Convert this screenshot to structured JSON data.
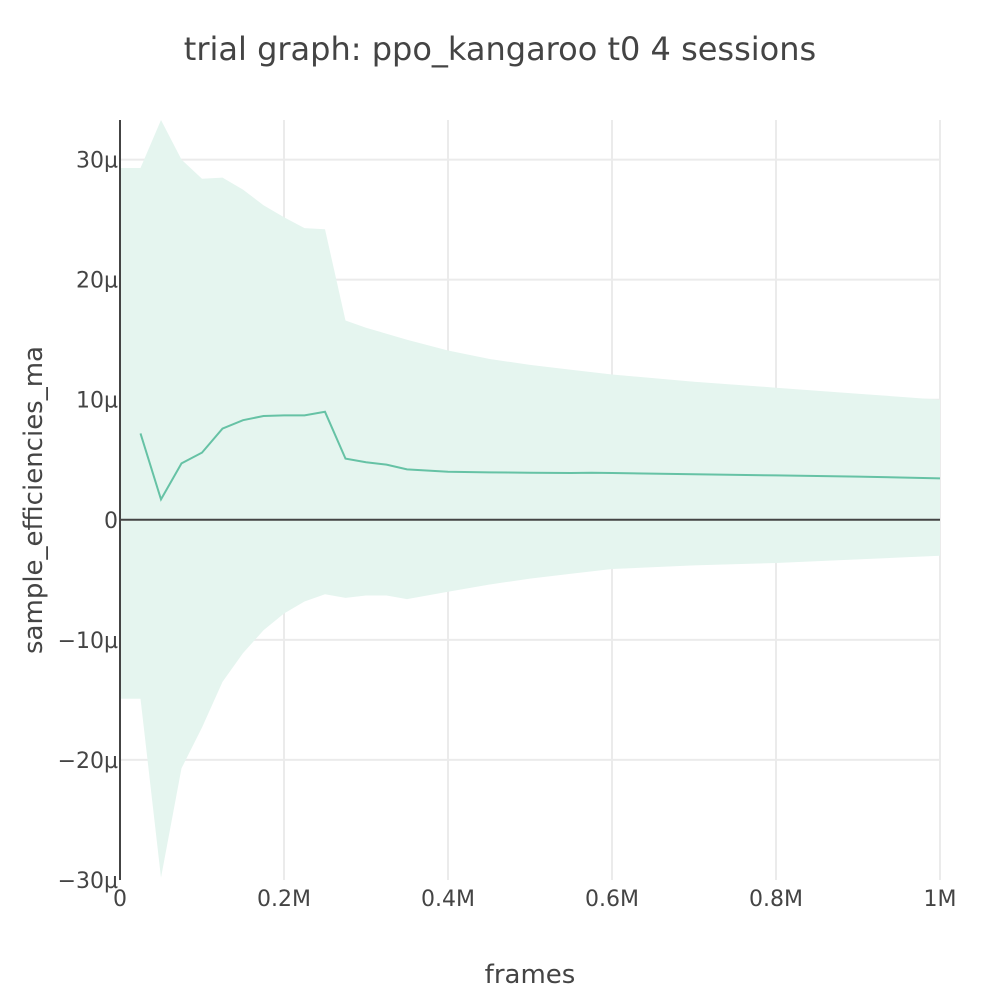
{
  "chart_data": {
    "type": "line",
    "title": "trial graph: ppo_kangaroo t0 4 sessions",
    "xlabel": "frames",
    "ylabel": "sample_efficiencies_ma",
    "xlim": [
      0,
      1000000
    ],
    "ylim": [
      -30,
      33
    ],
    "y_unit": "µ (×10⁻⁶)",
    "x_ticks": [
      {
        "value": 0,
        "label": "0"
      },
      {
        "value": 200000,
        "label": "0.2M"
      },
      {
        "value": 400000,
        "label": "0.4M"
      },
      {
        "value": 600000,
        "label": "0.6M"
      },
      {
        "value": 800000,
        "label": "0.8M"
      },
      {
        "value": 1000000,
        "label": "1M"
      }
    ],
    "y_ticks": [
      {
        "value": 30,
        "label": "30µ"
      },
      {
        "value": 20,
        "label": "20µ"
      },
      {
        "value": 10,
        "label": "10µ"
      },
      {
        "value": 0,
        "label": "0"
      },
      {
        "value": -10,
        "label": "−10µ"
      },
      {
        "value": -20,
        "label": "−20µ"
      },
      {
        "value": -30,
        "label": "−30µ"
      }
    ],
    "grid": true,
    "colors": {
      "line": "#66c2a5",
      "band": "#e5f5ef",
      "grid": "#ebebeb",
      "zero_line": "#444444"
    },
    "series": [
      {
        "x": [
          0,
          25000,
          50000,
          75000,
          100000,
          125000,
          150000,
          175000,
          200000,
          225000,
          250000,
          275000,
          300000,
          325000,
          350000,
          400000,
          450000,
          500000,
          550000,
          575000,
          600000,
          700000,
          800000,
          900000,
          1000000
        ],
        "values": [
          7.2,
          7.2,
          1.7,
          4.7,
          5.6,
          7.6,
          8.3,
          8.65,
          8.7,
          8.7,
          9.0,
          5.1,
          4.8,
          4.6,
          4.2,
          4.0,
          3.95,
          3.92,
          3.9,
          3.92,
          3.9,
          3.8,
          3.7,
          3.6,
          3.45
        ],
        "upper": [
          29.3,
          29.3,
          33.3,
          30.0,
          28.4,
          28.5,
          27.5,
          26.2,
          25.2,
          24.3,
          24.2,
          16.6,
          16.0,
          15.5,
          15.0,
          14.1,
          13.4,
          12.9,
          12.5,
          12.3,
          12.1,
          11.5,
          11.0,
          10.5,
          10.0
        ],
        "lower": [
          -14.9,
          -14.9,
          -29.8,
          -20.7,
          -17.3,
          -13.5,
          -11.1,
          -9.2,
          -7.8,
          -6.8,
          -6.2,
          -6.5,
          -6.3,
          -6.3,
          -6.6,
          -6.0,
          -5.4,
          -4.9,
          -4.5,
          -4.3,
          -4.1,
          -3.8,
          -3.6,
          -3.3,
          -3.0
        ]
      }
    ]
  }
}
